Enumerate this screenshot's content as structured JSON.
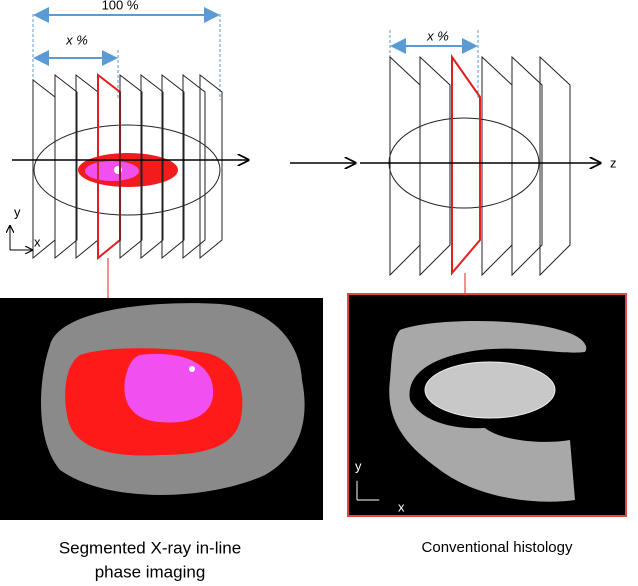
{
  "left_panel": {
    "span_label": "100 %",
    "slice_label": "x %",
    "axis_y": "y",
    "axis_x": "x",
    "caption": [
      "Segmented X-ray in-line",
      "phase imaging"
    ]
  },
  "right_panel": {
    "slice_label": "x %",
    "axis_z": "z",
    "image_axis_y": "y",
    "image_axis_x": "x",
    "caption": "Conventional histology"
  }
}
